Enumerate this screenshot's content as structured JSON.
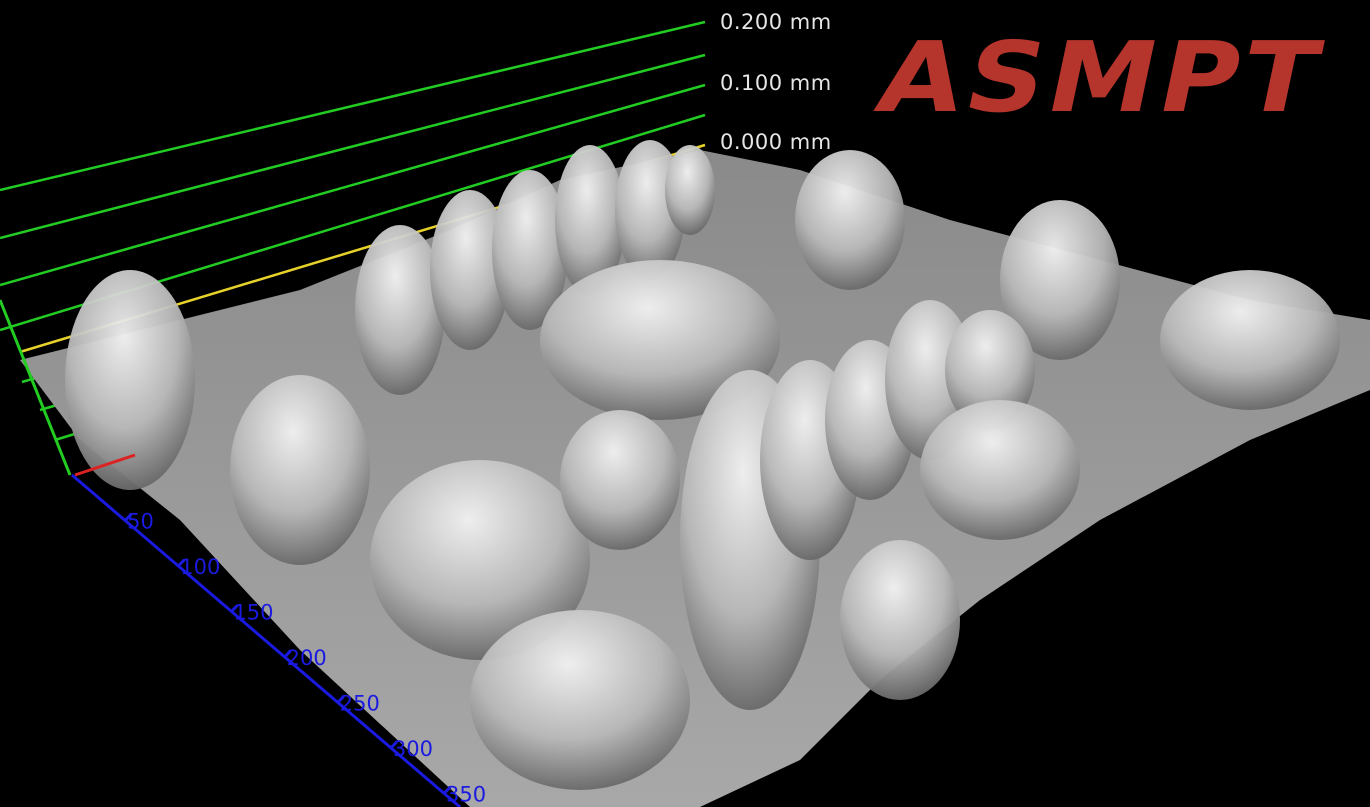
{
  "chart_data": {
    "type": "surface-3d",
    "z_axis": {
      "unit": "mm",
      "tick_labels": [
        "0.200 mm",
        "0.100 mm",
        "0.000 mm"
      ]
    },
    "x_axis": {
      "tick_labels": [
        "50",
        "100",
        "150",
        "200",
        "250",
        "300",
        "350"
      ]
    },
    "colors": {
      "z_grid": "#22cc22",
      "zero_plane": "#e6d22a",
      "x_axis": "#1a1ae0",
      "y_axis": "#dd2222",
      "surface": "#b4b4b4",
      "background": "#000000"
    }
  },
  "logo": {
    "text": "ASMPT",
    "color": "#b5342c"
  }
}
